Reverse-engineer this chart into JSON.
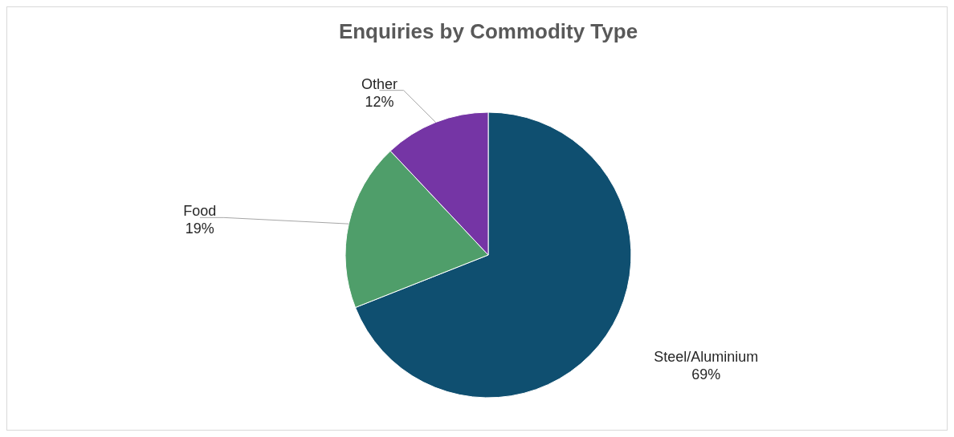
{
  "chart_data": {
    "type": "pie",
    "title": "Enquiries by Commodity Type",
    "categories": [
      "Steel/Aluminium",
      "Food",
      "Other"
    ],
    "values": [
      69,
      19,
      12
    ],
    "value_labels": [
      "69%",
      "19%",
      "12%"
    ],
    "colors": [
      "#0f4f70",
      "#4f9e6a",
      "#7535a5"
    ]
  }
}
